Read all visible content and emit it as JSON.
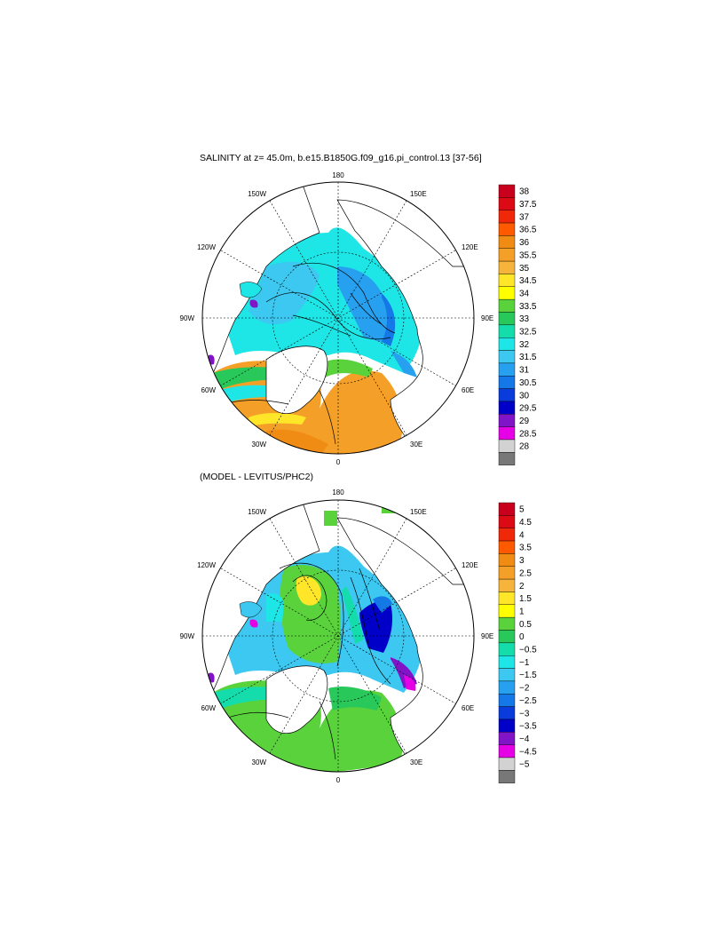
{
  "panels": [
    {
      "title": "SALINITY at z=  45.0m, b.e15.B1850G.f09_g16.pi_control.13 [37-56]",
      "lon_labels": {
        "top": "180",
        "bottom": "0",
        "left": "90W",
        "right": "90E",
        "upper_left": "150W",
        "upper_right": "150E",
        "mid_left": "120W",
        "mid_right": "120E",
        "lower_left": "60W",
        "lower_right": "60E",
        "bottom_left": "30W",
        "bottom_right": "30E"
      },
      "colorbar": {
        "labels": [
          "38",
          "37.5",
          "37",
          "36.5",
          "36",
          "35.5",
          "35",
          "34.5",
          "34",
          "33.5",
          "33",
          "32.5",
          "32",
          "31.5",
          "31",
          "30.5",
          "30",
          "29.5",
          "29",
          "28.5",
          "28"
        ],
        "colors": [
          "#c8001e",
          "#dc0a14",
          "#f0280a",
          "#ff5a00",
          "#f08c14",
          "#f4a028",
          "#f7b43c",
          "#ffe628",
          "#ffff00",
          "#5ad23c",
          "#28c85a",
          "#14dcaa",
          "#1ee6e6",
          "#3cc8f0",
          "#28a0f0",
          "#1478e6",
          "#0a3cdc",
          "#0000c8",
          "#8214c8",
          "#e600e6",
          "#d2d2d2",
          "#787878"
        ]
      },
      "map_colors": {
        "land": "#ffffff",
        "ocean_main": "#1edcdc",
        "atlantic": "#f4a028"
      }
    },
    {
      "title": "(MODEL - LEVITUS/PHC2)",
      "lon_labels": {
        "top": "180",
        "bottom": "0",
        "left": "90W",
        "right": "90E",
        "upper_left": "150W",
        "upper_right": "150E",
        "mid_left": "120W",
        "mid_right": "120E",
        "lower_left": "60W",
        "lower_right": "60E",
        "bottom_left": "30W",
        "bottom_right": "30E"
      },
      "colorbar": {
        "labels": [
          "5",
          "4.5",
          "4",
          "3.5",
          "3",
          "2.5",
          "2",
          "1.5",
          "1",
          "0.5",
          "0",
          "−0.5",
          "−1",
          "−1.5",
          "−2",
          "−2.5",
          "−3",
          "−3.5",
          "−4",
          "−4.5",
          "−5"
        ],
        "colors": [
          "#c8001e",
          "#dc0a14",
          "#f0280a",
          "#ff5a00",
          "#f08c14",
          "#f4a028",
          "#f7b43c",
          "#ffe628",
          "#ffff00",
          "#5ad23c",
          "#28c85a",
          "#14dcaa",
          "#1ee6e6",
          "#3cc8f0",
          "#28a0f0",
          "#1478e6",
          "#0a3cdc",
          "#0000c8",
          "#8214c8",
          "#e600e6",
          "#d2d2d2",
          "#787878"
        ]
      },
      "map_colors": {
        "land": "#ffffff",
        "ocean_main": "#3cc8f0",
        "atlantic": "#5ad23c"
      }
    }
  ]
}
